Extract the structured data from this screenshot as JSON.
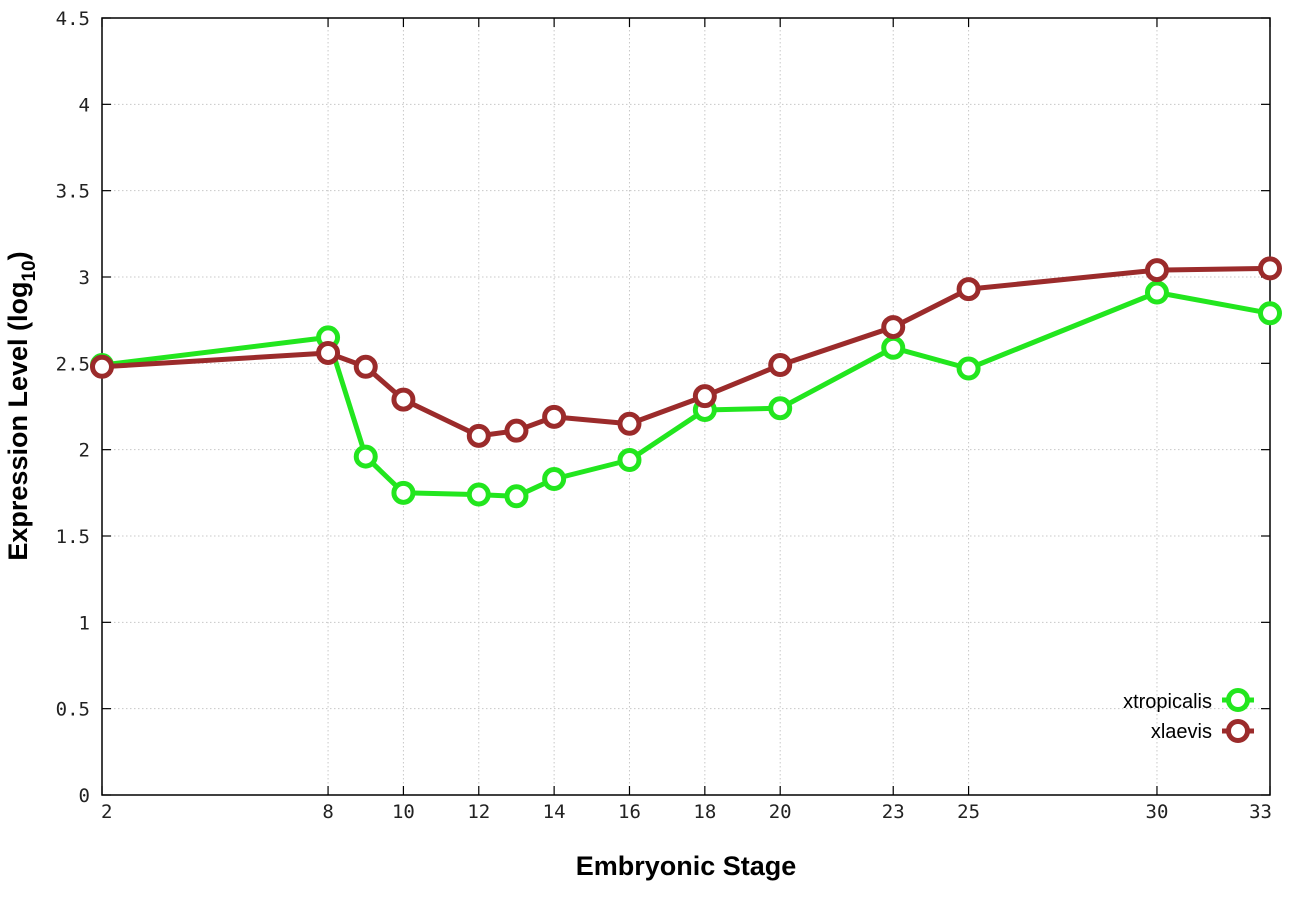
{
  "chart_data": {
    "type": "line",
    "xlabel": "Embryonic Stage",
    "ylabel_main": "Expression Level (log",
    "ylabel_sub": "10",
    "ylabel_close": ")",
    "xlim": [
      2,
      33
    ],
    "ylim": [
      0,
      4.5
    ],
    "x_ticks": [
      2,
      8,
      10,
      12,
      14,
      16,
      18,
      20,
      23,
      25,
      30,
      33
    ],
    "y_ticks": [
      "0",
      "0.5",
      "1",
      "1.5",
      "2",
      "2.5",
      "3",
      "3.5",
      "4",
      "4.5"
    ],
    "grid": true,
    "legend_position": "bottom-right",
    "series": [
      {
        "name": "xtropicalis",
        "color": "#22e61e",
        "x": [
          2,
          8,
          9,
          10,
          12,
          13,
          14,
          16,
          18,
          20,
          23,
          25,
          30,
          33
        ],
        "y": [
          2.49,
          2.65,
          1.96,
          1.75,
          1.74,
          1.73,
          1.83,
          1.94,
          2.23,
          2.24,
          2.59,
          2.47,
          2.91,
          2.79
        ]
      },
      {
        "name": "xlaevis",
        "color": "#9b2b2b",
        "x": [
          2,
          8,
          9,
          10,
          12,
          13,
          14,
          16,
          18,
          20,
          23,
          25,
          30,
          33
        ],
        "y": [
          2.48,
          2.56,
          2.48,
          2.29,
          2.08,
          2.11,
          2.19,
          2.15,
          2.31,
          2.49,
          2.71,
          2.93,
          3.04,
          3.05
        ]
      }
    ]
  }
}
